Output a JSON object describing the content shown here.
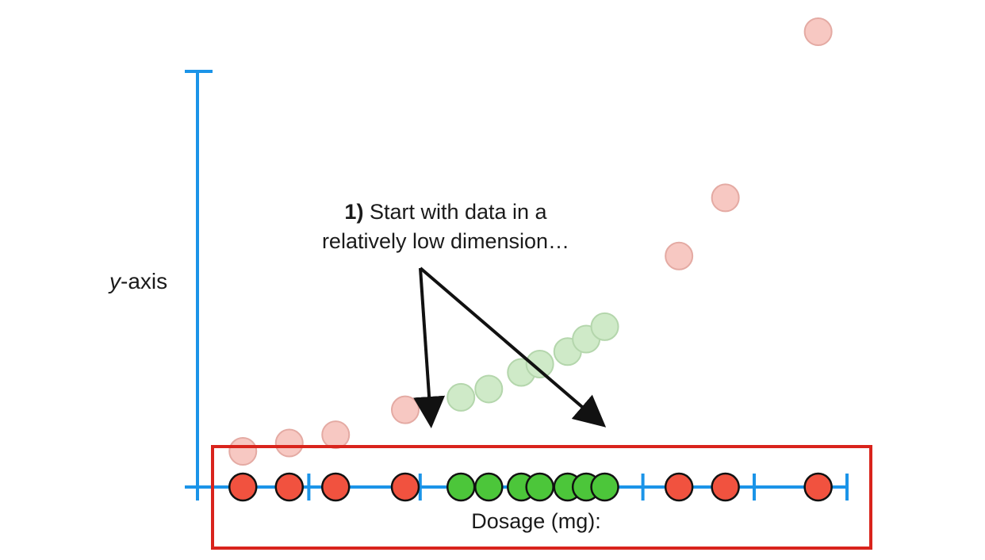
{
  "chart_data": {
    "type": "scatter",
    "title": "",
    "xlabel": "Dosage (mg):",
    "ylabel_italic": "y",
    "ylabel_rest": "-axis",
    "annotation": {
      "bold": "1)",
      "line1": "Start with data in a",
      "line2": "relatively low dimension…"
    },
    "points_1d": [
      {
        "x": 0.5,
        "class": "red"
      },
      {
        "x": 1.5,
        "class": "red"
      },
      {
        "x": 2.5,
        "class": "red"
      },
      {
        "x": 4.0,
        "class": "red"
      },
      {
        "x": 5.2,
        "class": "green"
      },
      {
        "x": 5.8,
        "class": "green"
      },
      {
        "x": 6.5,
        "class": "green"
      },
      {
        "x": 6.9,
        "class": "green"
      },
      {
        "x": 7.5,
        "class": "green"
      },
      {
        "x": 7.9,
        "class": "green"
      },
      {
        "x": 8.3,
        "class": "green"
      },
      {
        "x": 9.9,
        "class": "red"
      },
      {
        "x": 10.9,
        "class": "red"
      },
      {
        "x": 12.9,
        "class": "red"
      }
    ],
    "points_2d_faded": [
      {
        "x": 0.5,
        "y": 0.4,
        "class": "red"
      },
      {
        "x": 1.5,
        "y": 0.6,
        "class": "red"
      },
      {
        "x": 2.5,
        "y": 0.8,
        "class": "red"
      },
      {
        "x": 4.0,
        "y": 1.4,
        "class": "red"
      },
      {
        "x": 5.2,
        "y": 1.7,
        "class": "green"
      },
      {
        "x": 5.8,
        "y": 1.9,
        "class": "green"
      },
      {
        "x": 6.5,
        "y": 2.3,
        "class": "green"
      },
      {
        "x": 6.9,
        "y": 2.5,
        "class": "green"
      },
      {
        "x": 7.5,
        "y": 2.8,
        "class": "green"
      },
      {
        "x": 7.9,
        "y": 3.1,
        "class": "green"
      },
      {
        "x": 8.3,
        "y": 3.4,
        "class": "green"
      },
      {
        "x": 9.9,
        "y": 5.1,
        "class": "red"
      },
      {
        "x": 10.9,
        "y": 6.5,
        "class": "red"
      },
      {
        "x": 12.9,
        "y": 10.7,
        "class": "red"
      }
    ],
    "xlim": [
      0,
      14
    ],
    "ylim": [
      0,
      10
    ],
    "x_ticks": [
      0,
      2.4,
      4.8,
      9.6,
      12,
      14
    ],
    "highlight_box": true
  },
  "colors": {
    "axis": "#1b94e8",
    "red": "#f1523f",
    "green": "#4cc63a",
    "red_faded": "#f7c8c2",
    "green_faded": "#cfeac8",
    "box": "#d9241c",
    "arrow": "#111111"
  }
}
